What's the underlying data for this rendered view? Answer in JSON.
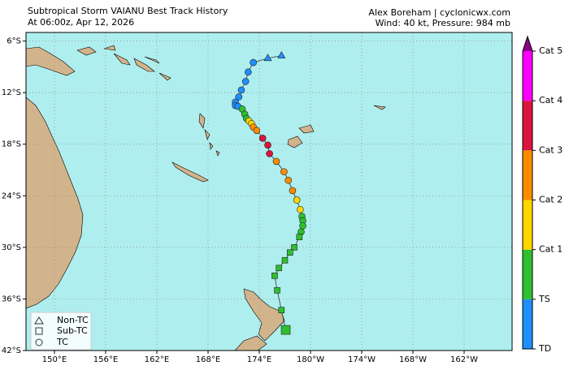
{
  "header": {
    "title": "Subtropical Storm VAIANU Best Track History",
    "subtitle": "At 06:00z, Apr 12, 2026",
    "credit": "Alex Boreham | cyclonicwx.com",
    "info": "Wind: 40 kt, Pressure: 984 mb"
  },
  "map": {
    "lonlim": [
      146.67,
      203.62
    ],
    "latlim": [
      -5,
      -42
    ],
    "lon_ticks": [
      {
        "value": 150,
        "label": "150°E"
      },
      {
        "value": 156,
        "label": "156°E"
      },
      {
        "value": 162,
        "label": "162°E"
      },
      {
        "value": 168,
        "label": "168°E"
      },
      {
        "value": 174,
        "label": "174°E"
      },
      {
        "value": 180,
        "label": "180°W"
      },
      {
        "value": 186,
        "label": "174°W"
      },
      {
        "value": 192,
        "label": "168°W"
      },
      {
        "value": 198,
        "label": "162°W"
      }
    ],
    "lat_ticks": [
      {
        "value": -6,
        "label": "6°S"
      },
      {
        "value": -12,
        "label": "12°S"
      },
      {
        "value": -18,
        "label": "18°S"
      },
      {
        "value": -24,
        "label": "24°S"
      },
      {
        "value": -30,
        "label": "30°S"
      },
      {
        "value": -36,
        "label": "36°S"
      },
      {
        "value": -42,
        "label": "42°S"
      }
    ]
  },
  "legend": [
    "Non-TC",
    "Sub-TC",
    "TC"
  ],
  "colorbar": {
    "labels": [
      "TD",
      "TS",
      "Cat 1",
      "Cat 2",
      "Cat 3",
      "Cat 4",
      "Cat 5"
    ],
    "colors": [
      "#1e8fff",
      "#2fbf2f",
      "#ffd700",
      "#ff8c00",
      "#dc143c",
      "#ff00ff",
      "#8b008b"
    ]
  },
  "track": [
    {
      "lon": 176.6,
      "lat": -7.7,
      "type": 0,
      "cat": 0
    },
    {
      "lon": 175.0,
      "lat": -8.0,
      "type": 0,
      "cat": 0
    },
    {
      "lon": 173.3,
      "lat": -8.5,
      "type": 2,
      "cat": 0
    },
    {
      "lon": 172.7,
      "lat": -9.6,
      "type": 2,
      "cat": 0
    },
    {
      "lon": 172.4,
      "lat": -10.7,
      "type": 2,
      "cat": 0
    },
    {
      "lon": 171.9,
      "lat": -11.7,
      "type": 2,
      "cat": 0
    },
    {
      "lon": 171.6,
      "lat": -12.5,
      "type": 2,
      "cat": 0
    },
    {
      "lon": 171.2,
      "lat": -13.1,
      "type": 2,
      "cat": 0
    },
    {
      "lon": 171.2,
      "lat": -13.5,
      "type": 2,
      "cat": 0
    },
    {
      "lon": 171.5,
      "lat": -13.6,
      "type": 2,
      "cat": 0
    },
    {
      "lon": 172.0,
      "lat": -13.9,
      "type": 2,
      "cat": 1
    },
    {
      "lon": 172.3,
      "lat": -14.5,
      "type": 2,
      "cat": 1
    },
    {
      "lon": 172.5,
      "lat": -15.0,
      "type": 2,
      "cat": 1
    },
    {
      "lon": 172.8,
      "lat": -15.3,
      "type": 2,
      "cat": 2
    },
    {
      "lon": 173.1,
      "lat": -15.6,
      "type": 2,
      "cat": 2
    },
    {
      "lon": 173.3,
      "lat": -16.0,
      "type": 2,
      "cat": 3
    },
    {
      "lon": 173.7,
      "lat": -16.4,
      "type": 2,
      "cat": 3
    },
    {
      "lon": 174.4,
      "lat": -17.3,
      "type": 2,
      "cat": 4
    },
    {
      "lon": 175.0,
      "lat": -18.1,
      "type": 2,
      "cat": 4
    },
    {
      "lon": 175.2,
      "lat": -19.1,
      "type": 2,
      "cat": 4
    },
    {
      "lon": 176.0,
      "lat": -20.0,
      "type": 2,
      "cat": 3
    },
    {
      "lon": 176.9,
      "lat": -21.2,
      "type": 2,
      "cat": 3
    },
    {
      "lon": 177.4,
      "lat": -22.2,
      "type": 2,
      "cat": 3
    },
    {
      "lon": 177.9,
      "lat": -23.4,
      "type": 2,
      "cat": 3
    },
    {
      "lon": 178.4,
      "lat": -24.5,
      "type": 2,
      "cat": 2
    },
    {
      "lon": 178.8,
      "lat": -25.6,
      "type": 2,
      "cat": 2
    },
    {
      "lon": 179.0,
      "lat": -26.4,
      "type": 2,
      "cat": 1
    },
    {
      "lon": 179.1,
      "lat": -26.9,
      "type": 2,
      "cat": 1
    },
    {
      "lon": 179.1,
      "lat": -27.5,
      "type": 2,
      "cat": 1
    },
    {
      "lon": 178.9,
      "lat": -28.2,
      "type": 2,
      "cat": 1
    },
    {
      "lon": 178.7,
      "lat": -28.8,
      "type": 1,
      "cat": 1
    },
    {
      "lon": 178.1,
      "lat": -30.0,
      "type": 1,
      "cat": 1
    },
    {
      "lon": 177.6,
      "lat": -30.6,
      "type": 1,
      "cat": 1
    },
    {
      "lon": 177.0,
      "lat": -31.5,
      "type": 1,
      "cat": 1
    },
    {
      "lon": 176.3,
      "lat": -32.4,
      "type": 1,
      "cat": 1
    },
    {
      "lon": 175.8,
      "lat": -33.3,
      "type": 1,
      "cat": 1
    },
    {
      "lon": 176.1,
      "lat": -35.0,
      "type": 1,
      "cat": 1
    },
    {
      "lon": 176.6,
      "lat": -37.3,
      "type": 1,
      "cat": 1
    },
    {
      "lon": 177.1,
      "lat": -39.6,
      "type": 1,
      "cat": 1
    }
  ]
}
